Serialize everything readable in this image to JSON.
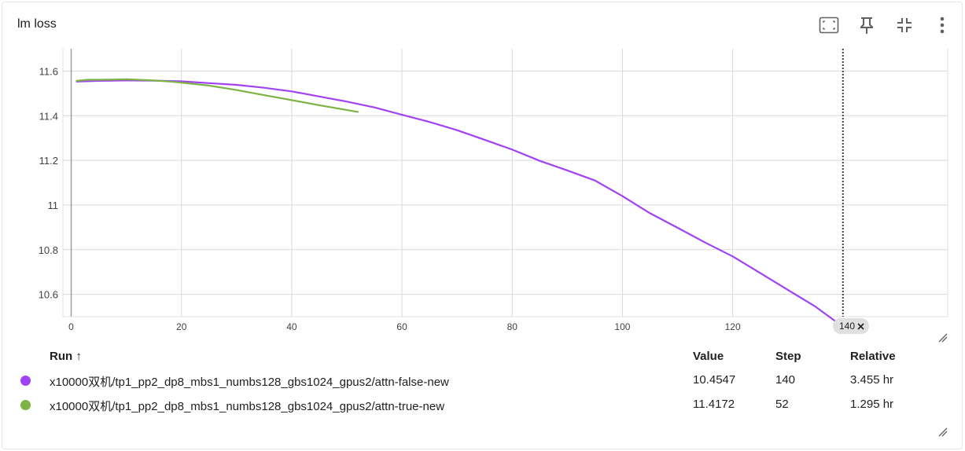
{
  "card": {
    "title": "lm loss"
  },
  "toolbar": {
    "icons": [
      "fit-domain-icon",
      "pin-icon",
      "collapse-icon",
      "more-vert-icon"
    ]
  },
  "chart_data": {
    "type": "line",
    "title": "lm loss",
    "xlabel": "",
    "ylabel": "",
    "xlim": [
      -1.5,
      159
    ],
    "ylim": [
      10.5,
      11.7
    ],
    "x_ticks": [
      0,
      20,
      40,
      60,
      80,
      100,
      120
    ],
    "x_tick_labels": [
      "0",
      "20",
      "40",
      "60",
      "80",
      "100",
      "120"
    ],
    "y_ticks": [
      10.6,
      10.8,
      11,
      11.2,
      11.4,
      11.6
    ],
    "y_tick_labels": [
      "10.6",
      "10.8",
      "11",
      "11.2",
      "11.4",
      "11.6"
    ],
    "grid": true,
    "cursor_step": 140,
    "cursor_label": "140",
    "series": [
      {
        "name": "x10000双机/tp1_pp2_dp8_mbs1_numbs128_gbs1024_gpus2/attn-false-new",
        "color": "#a142f4",
        "x": [
          1,
          5,
          10,
          15,
          20,
          25,
          30,
          35,
          40,
          45,
          50,
          55,
          60,
          65,
          70,
          75,
          80,
          85,
          90,
          95,
          100,
          105,
          110,
          115,
          120,
          125,
          130,
          135,
          140
        ],
        "y": [
          11.553,
          11.556,
          11.558,
          11.557,
          11.554,
          11.546,
          11.538,
          11.525,
          11.509,
          11.486,
          11.463,
          11.437,
          11.404,
          11.372,
          11.335,
          11.292,
          11.248,
          11.198,
          11.155,
          11.11,
          11.04,
          10.963,
          10.898,
          10.832,
          10.77,
          10.695,
          10.62,
          10.545,
          10.4547
        ]
      },
      {
        "name": "x10000双机/tp1_pp2_dp8_mbs1_numbs128_gbs1024_gpus2/attn-true-new",
        "color": "#7cb342",
        "x": [
          1,
          3,
          5,
          8,
          10,
          12,
          15,
          18,
          20,
          25,
          30,
          35,
          40,
          45,
          48,
          52
        ],
        "y": [
          11.556,
          11.561,
          11.561,
          11.562,
          11.563,
          11.561,
          11.558,
          11.553,
          11.548,
          11.535,
          11.515,
          11.492,
          11.47,
          11.447,
          11.434,
          11.4172
        ]
      }
    ]
  },
  "table": {
    "headers": {
      "run": "Run",
      "sort_arrow": "↑",
      "value": "Value",
      "step": "Step",
      "relative": "Relative"
    },
    "rows": [
      {
        "run": "x10000双机/tp1_pp2_dp8_mbs1_numbs128_gbs1024_gpus2/attn-false-new",
        "value": "10.4547",
        "step": "140",
        "relative": "3.455 hr",
        "color": "#a142f4"
      },
      {
        "run": "x10000双机/tp1_pp2_dp8_mbs1_numbs128_gbs1024_gpus2/attn-true-new",
        "value": "11.4172",
        "step": "52",
        "relative": "1.295 hr",
        "color": "#7cb342"
      }
    ]
  }
}
